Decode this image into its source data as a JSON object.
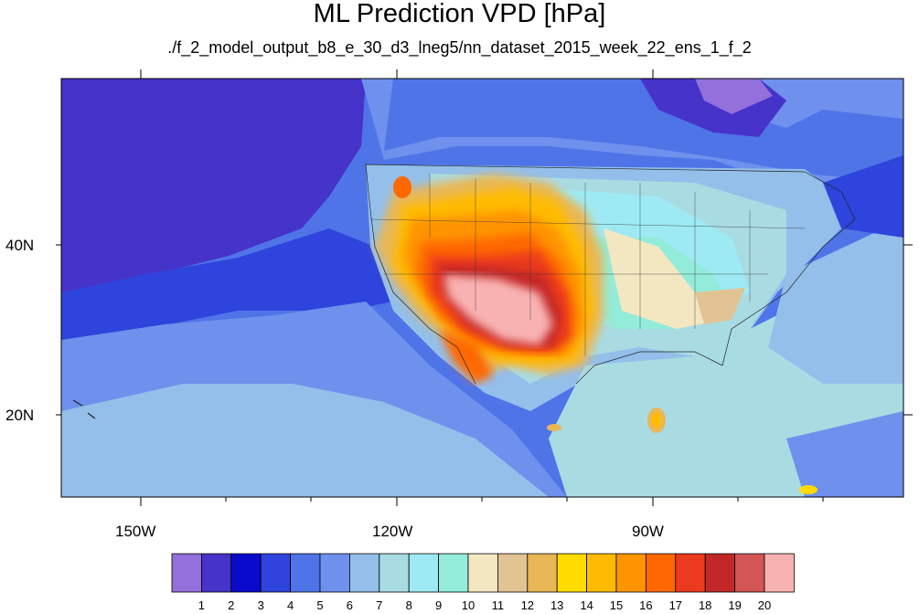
{
  "title": "ML Prediction VPD [hPa]",
  "subtitle": "./f_2_model_output_b8_e_30_d3_lneg5/nn_dataset_2015_week_22_ens_1_f_2",
  "map": {
    "lon_range": [
      -163,
      -65
    ],
    "lat_range": [
      10,
      59
    ],
    "lon_labels": [
      "150W",
      "120W",
      "90W"
    ],
    "lat_labels": [
      "40N",
      "20N"
    ]
  },
  "colorbar": {
    "labels": [
      "1",
      "2",
      "3",
      "4",
      "5",
      "6",
      "7",
      "8",
      "9",
      "10",
      "11",
      "12",
      "13",
      "14",
      "15",
      "16",
      "17",
      "18",
      "19",
      "20"
    ],
    "colors": [
      "#9370db",
      "#4633c9",
      "#0a0acd",
      "#2e44dc",
      "#4f74e8",
      "#6f90ec",
      "#93bfea",
      "#a9dbe3",
      "#9eeaf4",
      "#93ecd9",
      "#f3e7c2",
      "#e2c394",
      "#e9b755",
      "#ffdb00",
      "#ffbb00",
      "#ff9400",
      "#ff6800",
      "#eb3a1d",
      "#c32828",
      "#d35555",
      "#f9b2b2"
    ]
  }
}
